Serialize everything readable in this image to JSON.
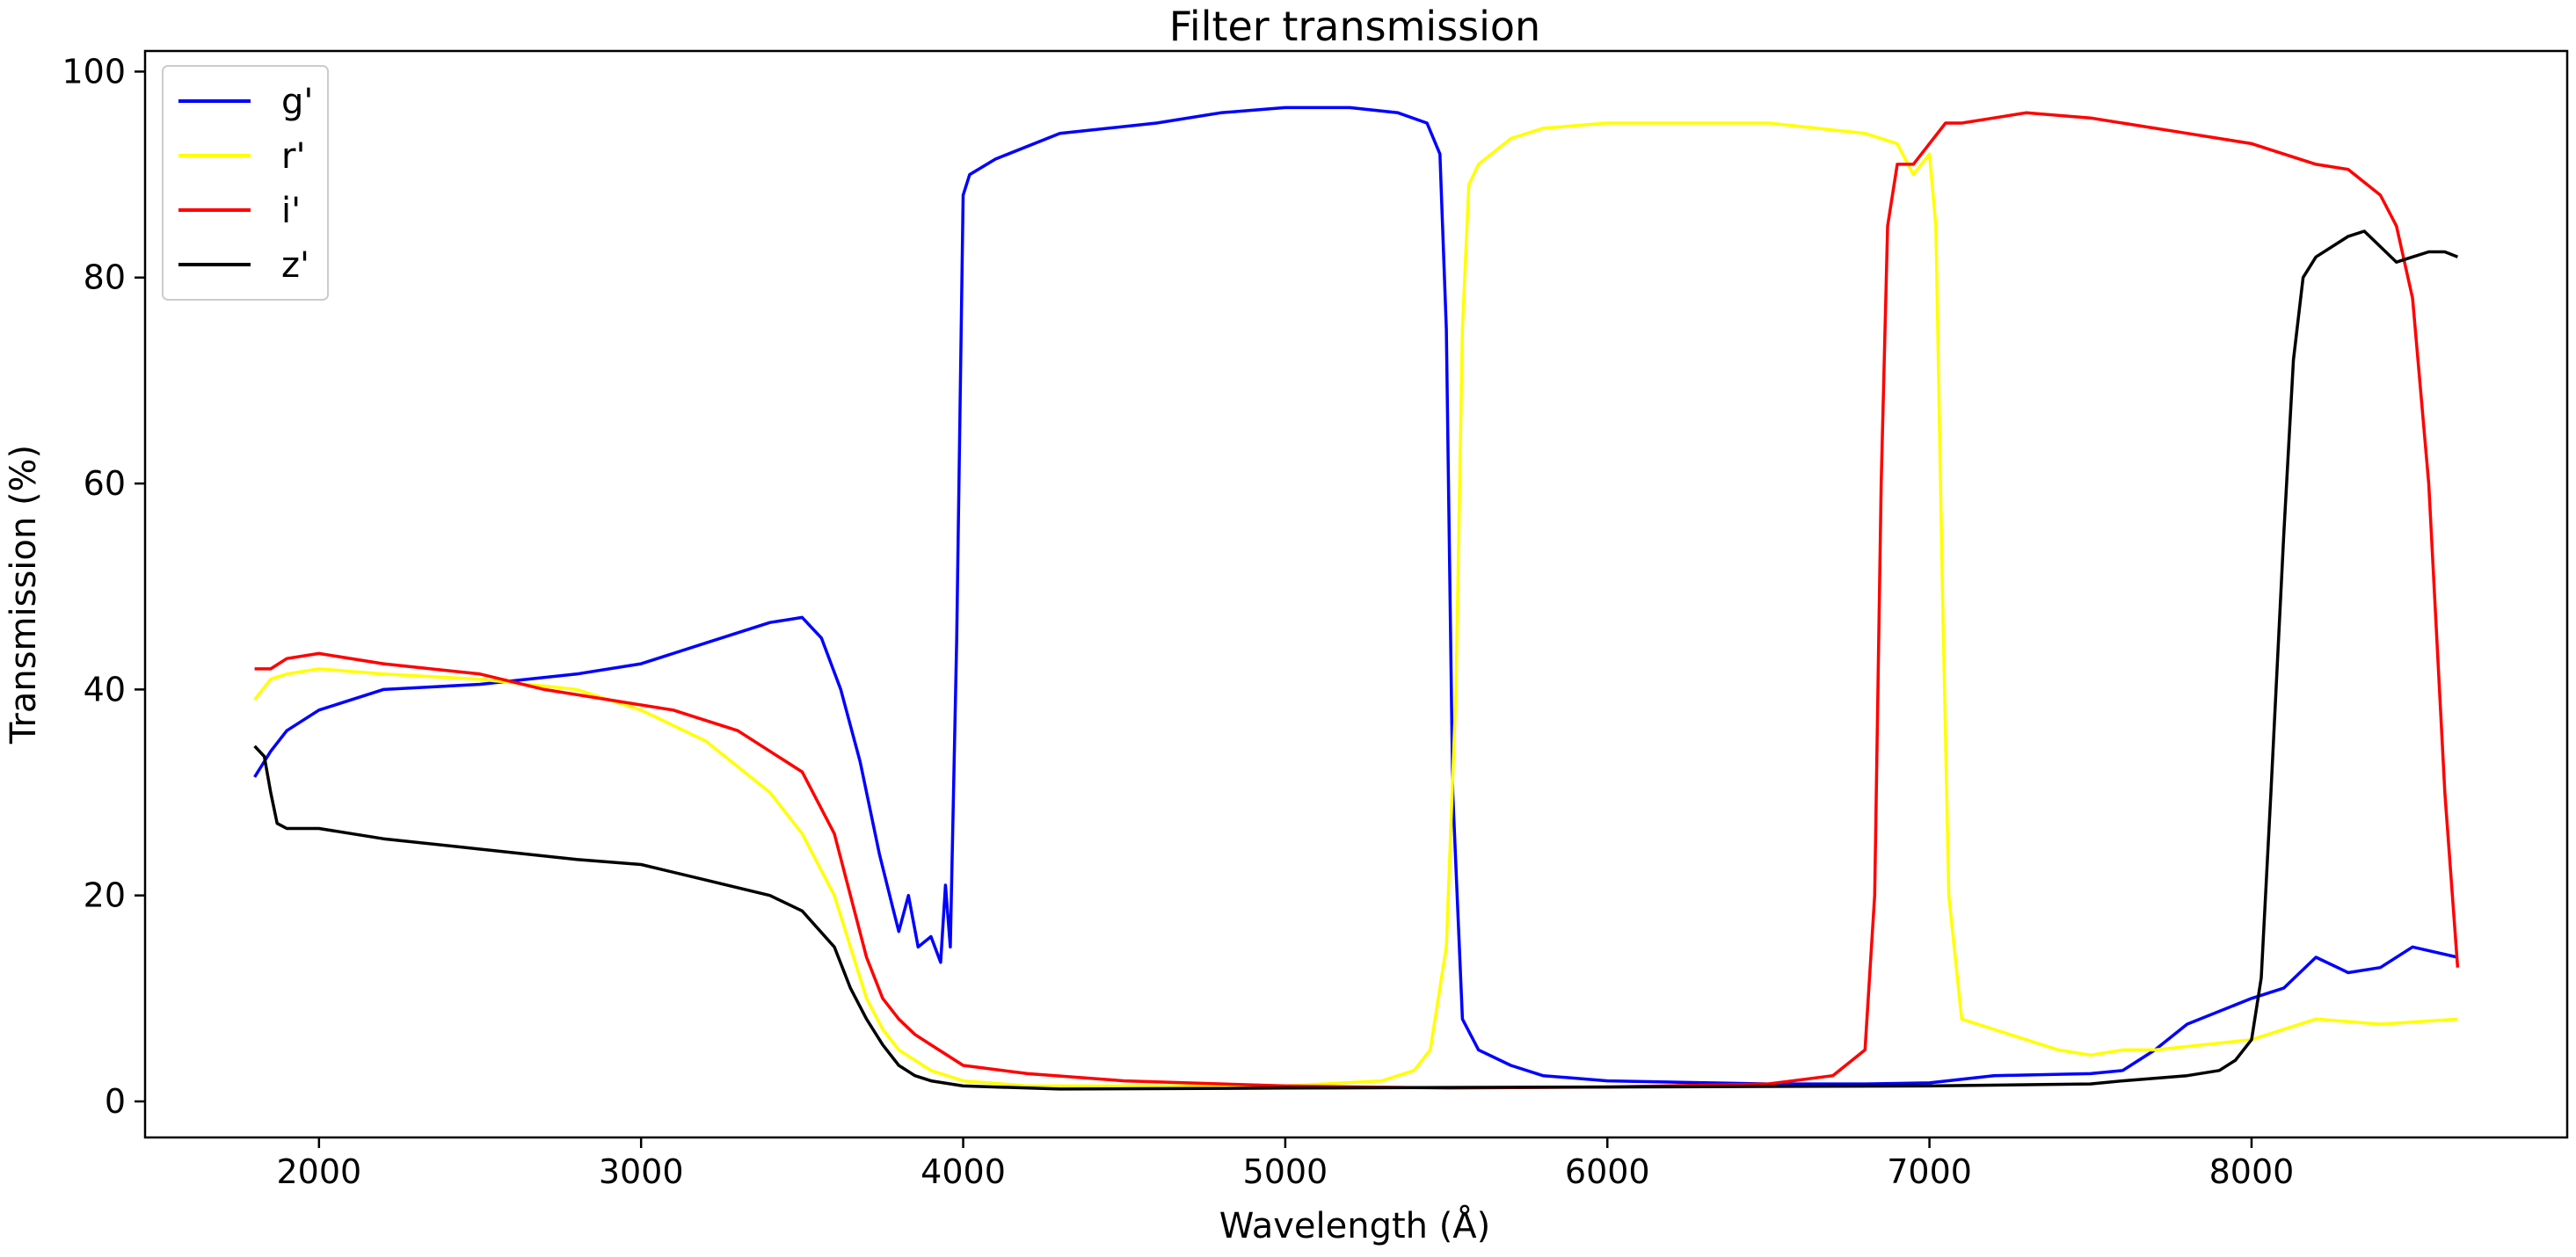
{
  "chart_data": {
    "type": "line",
    "title": "Filter transmission",
    "xlabel": "Wavelength (Å)",
    "ylabel": "Transmission (%)",
    "xlim": [
      1460,
      8980
    ],
    "ylim": [
      -3.5,
      102
    ],
    "xticks": [
      2000,
      3000,
      4000,
      5000,
      6000,
      7000,
      8000
    ],
    "yticks": [
      0,
      20,
      40,
      60,
      80,
      100
    ],
    "grid": false,
    "legend_position": "upper-left",
    "series": [
      {
        "name": "g'",
        "color": "#0000ff",
        "x": [
          1800,
          1850,
          1900,
          2000,
          2200,
          2500,
          2800,
          3000,
          3200,
          3400,
          3500,
          3560,
          3620,
          3680,
          3740,
          3780,
          3800,
          3830,
          3860,
          3900,
          3930,
          3945,
          3960,
          3980,
          4000,
          4020,
          4100,
          4300,
          4600,
          4800,
          5000,
          5200,
          5350,
          5440,
          5480,
          5500,
          5520,
          5550,
          5600,
          5700,
          5800,
          6000,
          6500,
          6800,
          7000,
          7200,
          7500,
          7600,
          7650,
          7700,
          7800,
          8000,
          8100,
          8200,
          8300,
          8400,
          8500,
          8640
        ],
        "y": [
          31.5,
          34,
          36,
          38,
          40,
          40.5,
          41.5,
          42.5,
          44.5,
          46.5,
          47,
          45,
          40,
          33,
          24,
          19,
          16.5,
          20,
          15,
          16,
          13.5,
          21,
          15,
          45,
          88,
          90,
          91.5,
          94,
          95,
          96,
          96.5,
          96.5,
          96,
          95,
          92,
          75,
          30,
          8,
          5,
          3.5,
          2.5,
          2,
          1.7,
          1.7,
          1.8,
          2.5,
          2.7,
          3,
          4,
          5,
          7.5,
          10,
          11,
          14,
          12.5,
          13,
          15,
          14
        ]
      },
      {
        "name": "r'",
        "color": "#ffff00",
        "x": [
          1800,
          1850,
          1900,
          2000,
          2200,
          2500,
          2800,
          3000,
          3200,
          3400,
          3500,
          3600,
          3650,
          3700,
          3750,
          3800,
          3900,
          4000,
          4200,
          4500,
          5000,
          5300,
          5400,
          5450,
          5500,
          5530,
          5550,
          5570,
          5600,
          5700,
          5800,
          6000,
          6500,
          6800,
          6900,
          6950,
          7000,
          7020,
          7040,
          7060,
          7100,
          7200,
          7300,
          7400,
          7500,
          7600,
          7700,
          8000,
          8200,
          8400,
          8640
        ],
        "y": [
          39,
          41,
          41.5,
          42,
          41.5,
          41,
          40,
          38,
          35,
          30,
          26,
          20,
          15,
          10,
          7,
          5,
          3,
          2,
          1.5,
          1.5,
          1.5,
          2,
          3,
          5,
          15,
          40,
          75,
          89,
          91,
          93.5,
          94.5,
          95,
          95,
          94,
          93,
          90,
          92,
          85,
          50,
          20,
          8,
          7,
          6,
          5,
          4.5,
          5,
          5,
          6,
          8,
          7.5,
          8
        ]
      },
      {
        "name": "i'",
        "color": "#ff0000",
        "x": [
          1800,
          1850,
          1900,
          2000,
          2200,
          2500,
          2700,
          2900,
          3100,
          3300,
          3500,
          3600,
          3650,
          3700,
          3750,
          3800,
          3850,
          3900,
          4000,
          4200,
          4500,
          5000,
          5500,
          6000,
          6500,
          6700,
          6800,
          6830,
          6850,
          6870,
          6900,
          6950,
          7000,
          7050,
          7100,
          7200,
          7300,
          7500,
          7800,
          8000,
          8100,
          8200,
          8300,
          8400,
          8450,
          8500,
          8550,
          8600,
          8640
        ],
        "y": [
          42,
          42,
          43,
          43.5,
          42.5,
          41.5,
          40,
          39,
          38,
          36,
          32,
          26,
          20,
          14,
          10,
          8,
          6.5,
          5.5,
          3.5,
          2.7,
          2,
          1.5,
          1.3,
          1.4,
          1.7,
          2.5,
          5,
          20,
          60,
          85,
          91,
          91,
          93,
          95,
          95,
          95.5,
          96,
          95.5,
          94,
          93,
          92,
          91,
          90.5,
          88,
          85,
          78,
          60,
          30,
          13
        ]
      },
      {
        "name": "z'",
        "color": "#000000",
        "x": [
          1800,
          1830,
          1850,
          1870,
          1900,
          2000,
          2200,
          2500,
          2800,
          3000,
          3200,
          3400,
          3500,
          3600,
          3650,
          3700,
          3750,
          3800,
          3850,
          3900,
          4000,
          4300,
          5000,
          6000,
          7000,
          7500,
          7600,
          7800,
          7900,
          7950,
          8000,
          8030,
          8060,
          8100,
          8130,
          8160,
          8200,
          8300,
          8350,
          8400,
          8450,
          8500,
          8550,
          8600,
          8640
        ],
        "y": [
          34.5,
          33.5,
          30,
          27,
          26.5,
          26.5,
          25.5,
          24.5,
          23.5,
          23,
          21.5,
          20,
          18.5,
          15,
          11,
          8,
          5.5,
          3.5,
          2.5,
          2,
          1.5,
          1.2,
          1.3,
          1.4,
          1.5,
          1.7,
          2,
          2.5,
          3,
          4,
          6,
          12,
          30,
          55,
          72,
          80,
          82,
          84,
          84.5,
          83,
          81.5,
          82,
          82.5,
          82.5,
          82
        ]
      }
    ]
  }
}
